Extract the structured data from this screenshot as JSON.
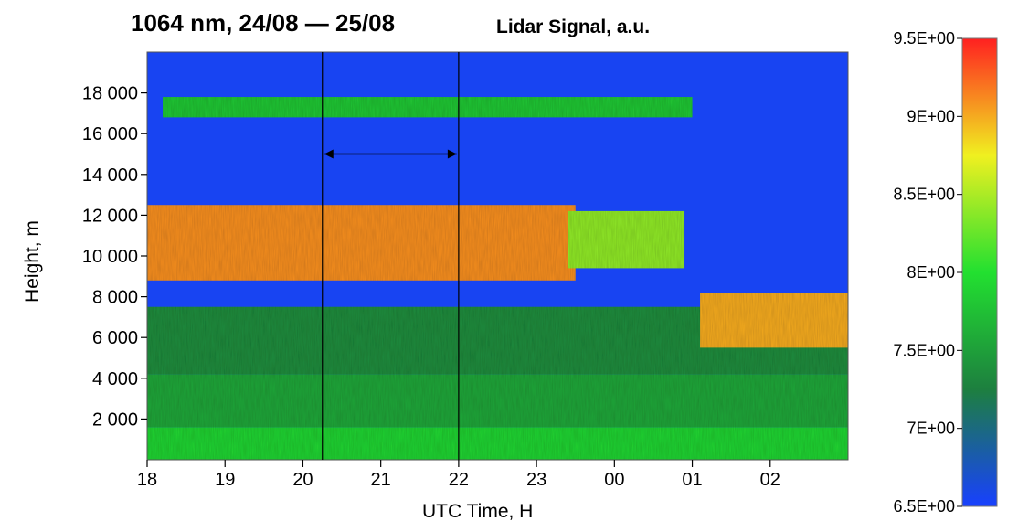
{
  "chart_data": {
    "type": "heatmap",
    "title": "1064 nm, 24/08 — 25/08",
    "subtitle": "Lidar Signal, a.u.",
    "xlabel": "UTC Time, H",
    "ylabel": "Height, m",
    "x_ticks": [
      "18",
      "19",
      "20",
      "21",
      "22",
      "23",
      "00",
      "01",
      "02"
    ],
    "x_range_hours": [
      18,
      27
    ],
    "y_ticks": [
      {
        "value": 2000,
        "label": "2 000"
      },
      {
        "value": 4000,
        "label": "4 000"
      },
      {
        "value": 6000,
        "label": "6 000"
      },
      {
        "value": 8000,
        "label": "8 000"
      },
      {
        "value": 10000,
        "label": "10 000"
      },
      {
        "value": 12000,
        "label": "12 000"
      },
      {
        "value": 14000,
        "label": "14 000"
      },
      {
        "value": 16000,
        "label": "16 000"
      },
      {
        "value": 18000,
        "label": "18 000"
      }
    ],
    "ylim": [
      0,
      20000
    ],
    "colorbar": {
      "range": [
        6.5,
        9.5
      ],
      "ticks": [
        {
          "value": 9.5,
          "label": "9.5E+00"
        },
        {
          "value": 9.0,
          "label": "9E+00"
        },
        {
          "value": 8.5,
          "label": "8.5E+00"
        },
        {
          "value": 8.0,
          "label": "8E+00"
        },
        {
          "value": 7.5,
          "label": "7.5E+00"
        },
        {
          "value": 7.0,
          "label": "7E+00"
        },
        {
          "value": 6.5,
          "label": "6.5E+00"
        }
      ],
      "colors": [
        "#1840ff",
        "#1d7f3f",
        "#22e030",
        "#f0f020",
        "#ff2020"
      ]
    },
    "marked_interval_hours": [
      20.25,
      22.0
    ],
    "arrow_height_m": 15000,
    "layers": [
      {
        "name": "surface",
        "t_start": 18,
        "t_end": 27,
        "h_bottom": 0,
        "h_top": 1600,
        "level": 7.9
      },
      {
        "name": "boundary",
        "t_start": 18,
        "t_end": 27,
        "h_bottom": 1600,
        "h_top": 4200,
        "level": 7.55
      },
      {
        "name": "aerosol-mid",
        "t_start": 18,
        "t_end": 27,
        "h_bottom": 4200,
        "h_top": 7500,
        "level": 7.35
      },
      {
        "name": "cirrus-main",
        "t_start": 18,
        "t_end": 23.5,
        "h_bottom": 8800,
        "h_top": 12500,
        "level": 9.1
      },
      {
        "name": "cirrus-late",
        "t_start": 23.4,
        "t_end": 24.9,
        "h_bottom": 9400,
        "h_top": 12200,
        "level": 8.4
      },
      {
        "name": "cirrus-low",
        "t_start": 25.1,
        "t_end": 27,
        "h_bottom": 5500,
        "h_top": 8200,
        "level": 9.0
      },
      {
        "name": "stratospheric-layer",
        "t_start": 18.2,
        "t_end": 25.0,
        "h_bottom": 16800,
        "h_top": 17800,
        "level": 7.8
      }
    ]
  }
}
